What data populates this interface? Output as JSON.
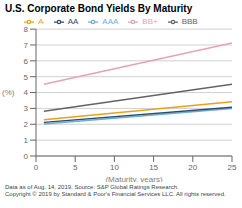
{
  "chart_data": {
    "type": "line",
    "title": "U.S. Corporate Bond Yields By Maturity",
    "x_label": "(Maturity, years)",
    "y_label": "(%)",
    "x": [
      1,
      25
    ],
    "series": [
      {
        "name": "AAA",
        "color": "#6baed6",
        "values": [
          2.02,
          3.0
        ]
      },
      {
        "name": "AA",
        "color": "#2c4a6e",
        "values": [
          2.12,
          3.08
        ]
      },
      {
        "name": "A",
        "color": "#e8a020",
        "values": [
          2.28,
          3.42
        ]
      },
      {
        "name": "BBB",
        "color": "#636363",
        "values": [
          2.82,
          4.52
        ]
      },
      {
        "name": "BB+",
        "color": "#e8a0b4",
        "values": [
          4.52,
          7.12
        ]
      }
    ],
    "xlim": [
      0,
      25
    ],
    "xticks": [
      0,
      5,
      10,
      15,
      20,
      25
    ],
    "ylim": [
      0,
      8
    ],
    "yticks": [
      0,
      1,
      2,
      3,
      4,
      5,
      6,
      7,
      8
    ],
    "grid": true,
    "legend": "top",
    "annotations": [
      "Data as of Aug. 14, 2019. Source: S&P Global Ratings Research.",
      "Copyright © 2019 by Standard & Poor's Financial Services LLC. All rights reserved."
    ]
  }
}
